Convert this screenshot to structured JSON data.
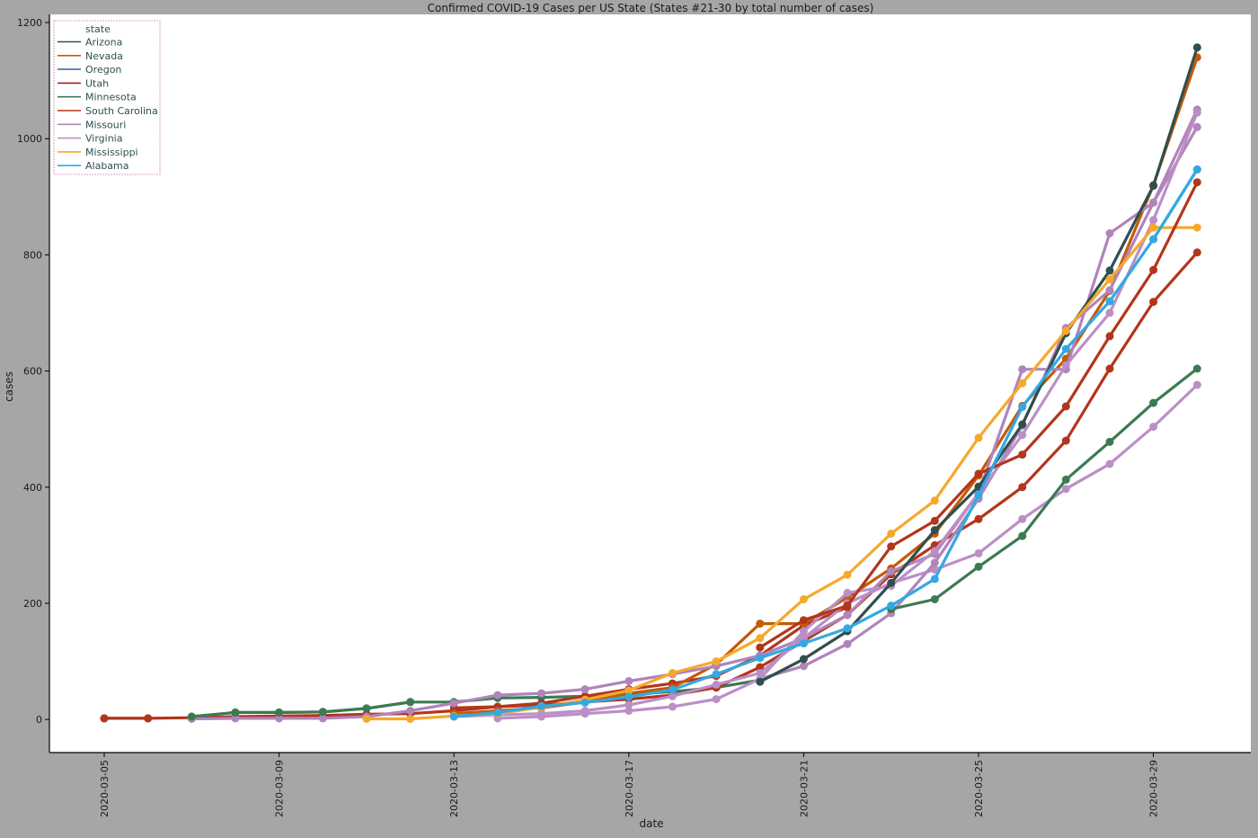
{
  "chart_data": {
    "type": "line",
    "title": "Confirmed COVID-19 Cases per US State (States #21-30 by total number of cases)",
    "xlabel": "date",
    "ylabel": "cases",
    "x": [
      "2020-03-05",
      "2020-03-06",
      "2020-03-07",
      "2020-03-08",
      "2020-03-09",
      "2020-03-10",
      "2020-03-11",
      "2020-03-12",
      "2020-03-13",
      "2020-03-14",
      "2020-03-15",
      "2020-03-16",
      "2020-03-17",
      "2020-03-18",
      "2020-03-19",
      "2020-03-20",
      "2020-03-21",
      "2020-03-22",
      "2020-03-23",
      "2020-03-24",
      "2020-03-25",
      "2020-03-26",
      "2020-03-27",
      "2020-03-28",
      "2020-03-29",
      "2020-03-30"
    ],
    "x_ticks": [
      "2020-03-05",
      "2020-03-09",
      "2020-03-13",
      "2020-03-17",
      "2020-03-21",
      "2020-03-25",
      "2020-03-29"
    ],
    "y_ticks": [
      0,
      200,
      400,
      600,
      800,
      1000,
      1200
    ],
    "ylim": [
      -57,
      1214
    ],
    "legend_title": "state",
    "legend_position": "top-left",
    "grid": false,
    "series": [
      {
        "name": "Arizona",
        "color": "#2f4f4f",
        "values": [
          null,
          null,
          null,
          null,
          null,
          null,
          null,
          null,
          null,
          null,
          null,
          null,
          null,
          null,
          null,
          65,
          104,
          152,
          235,
          326,
          401,
          508,
          665,
          773,
          919,
          1157
        ]
      },
      {
        "name": "Nevada",
        "color": "#c45a0a",
        "values": [
          null,
          null,
          null,
          null,
          null,
          null,
          null,
          null,
          null,
          null,
          null,
          null,
          null,
          null,
          null,
          null,
          null,
          null,
          null,
          null,
          null,
          null,
          null,
          null,
          null,
          null
        ]
      },
      {
        "name": "Oregon",
        "color": "#3d6f9a",
        "values": [
          null,
          null,
          null,
          null,
          null,
          null,
          null,
          null,
          null,
          null,
          null,
          null,
          null,
          null,
          null,
          null,
          null,
          null,
          null,
          null,
          null,
          null,
          null,
          null,
          null,
          null
        ]
      },
      {
        "name": "Utah",
        "color": "#a32121",
        "values": [
          null,
          null,
          null,
          null,
          null,
          null,
          null,
          null,
          null,
          null,
          null,
          null,
          null,
          null,
          null,
          null,
          null,
          null,
          null,
          null,
          null,
          null,
          null,
          null,
          null,
          null
        ]
      },
      {
        "name": "Minnesota",
        "color": "#3d7a52",
        "values": [
          null,
          null,
          5,
          12,
          12,
          13,
          19,
          30,
          null,
          null,
          null,
          null,
          null,
          null,
          null,
          null,
          null,
          null,
          190,
          207,
          263,
          316,
          413,
          478,
          545,
          604
        ]
      },
      {
        "name": "South Carolina",
        "color": "#b2361c",
        "values": [
          2,
          2,
          null,
          null,
          null,
          null,
          null,
          null,
          null,
          null,
          null,
          null,
          null,
          null,
          null,
          124,
          171,
          196,
          298,
          342,
          423,
          456,
          539,
          660,
          774,
          925
        ]
      },
      {
        "name": "Missouri",
        "color": "#b084bc",
        "values": [
          null,
          null,
          null,
          null,
          null,
          null,
          null,
          null,
          null,
          null,
          null,
          null,
          null,
          null,
          null,
          null,
          null,
          null,
          null,
          null,
          null,
          null,
          null,
          null,
          null,
          null
        ]
      },
      {
        "name": "Virginia",
        "color": "#bb8fc6",
        "values": [
          null,
          null,
          null,
          null,
          null,
          null,
          null,
          null,
          null,
          null,
          null,
          null,
          null,
          null,
          null,
          null,
          null,
          null,
          null,
          null,
          null,
          null,
          null,
          null,
          null,
          null
        ]
      },
      {
        "name": "Mississippi",
        "color": "#f5a92c",
        "values": [
          null,
          null,
          null,
          null,
          null,
          null,
          1,
          1,
          6,
          10,
          21,
          34,
          50,
          80,
          100,
          140,
          207,
          249,
          320,
          377,
          485,
          579,
          669,
          758,
          847,
          null
        ]
      },
      {
        "name": "Alabama",
        "color": "#33a9e3",
        "values": [
          null,
          null,
          null,
          null,
          null,
          null,
          null,
          null,
          5,
          12,
          23,
          29,
          39,
          51,
          78,
          106,
          131,
          157,
          196,
          242,
          386,
          538,
          638,
          720,
          827,
          947
        ]
      }
    ],
    "drawn_lines": [
      {
        "color": "#3d7a52",
        "values": [
          null,
          null,
          5,
          12,
          12,
          13,
          19,
          30,
          30,
          37,
          38,
          40,
          43,
          48,
          55,
          68,
          null,
          null,
          null,
          null,
          null,
          null,
          null,
          null,
          null,
          null
        ]
      },
      {
        "color": "#b2361c",
        "values": [
          2,
          2,
          3,
          5,
          6,
          7,
          9,
          10,
          15,
          22,
          28,
          40,
          52,
          62,
          75,
          110,
          162,
          193,
          null,
          null,
          null,
          null,
          null,
          null,
          null,
          null
        ]
      },
      {
        "color": "#b2361c",
        "values": [
          null,
          null,
          null,
          null,
          null,
          null,
          null,
          null,
          20,
          22,
          25,
          30,
          35,
          42,
          55,
          90,
          135,
          180,
          250,
          300,
          345,
          400,
          480,
          604,
          719,
          804
        ]
      },
      {
        "color": "#c45a0a",
        "values": [
          null,
          null,
          null,
          null,
          null,
          null,
          null,
          null,
          10,
          15,
          20,
          30,
          45,
          55,
          95,
          165,
          165,
          210,
          260,
          320,
          420,
          540,
          621,
          738,
          920,
          1140
        ]
      },
      {
        "color": "#b084bc",
        "values": [
          null,
          null,
          1,
          2,
          2,
          2,
          5,
          15,
          28,
          42,
          45,
          52,
          66,
          78,
          92,
          110,
          140,
          180,
          255,
          285,
          390,
          603,
          603,
          837,
          890,
          1050
        ]
      },
      {
        "color": "#bb8fc6",
        "values": [
          null,
          null,
          null,
          null,
          null,
          null,
          null,
          null,
          5,
          8,
          10,
          15,
          25,
          40,
          60,
          80,
          140,
          200,
          235,
          258,
          286,
          345,
          397,
          440,
          504,
          576
        ]
      },
      {
        "color": "#b084bc",
        "values": [
          null,
          null,
          null,
          null,
          null,
          null,
          null,
          null,
          null,
          null,
          null,
          null,
          null,
          null,
          null,
          70,
          92,
          130,
          183,
          270,
          380,
          506,
          674,
          739,
          890,
          1020
        ]
      },
      {
        "color": "#bb8fc6",
        "values": [
          null,
          null,
          null,
          null,
          null,
          null,
          null,
          null,
          null,
          2,
          5,
          10,
          15,
          22,
          35,
          70,
          152,
          218,
          230,
          290,
          390,
          490,
          610,
          700,
          860,
          1045
        ]
      },
      {
        "color": "#f5a92c",
        "values": [
          null,
          null,
          null,
          null,
          null,
          null,
          null,
          null,
          null,
          null,
          null,
          null,
          null,
          null,
          null,
          null,
          null,
          null,
          null,
          null,
          null,
          null,
          null,
          null,
          847,
          847
        ]
      },
      {
        "color": "#33a9e3",
        "values": [
          null,
          null,
          null,
          null,
          null,
          null,
          null,
          null,
          null,
          null,
          null,
          null,
          null,
          null,
          null,
          null,
          null,
          null,
          null,
          null,
          null,
          null,
          null,
          null,
          827,
          947
        ]
      }
    ]
  }
}
